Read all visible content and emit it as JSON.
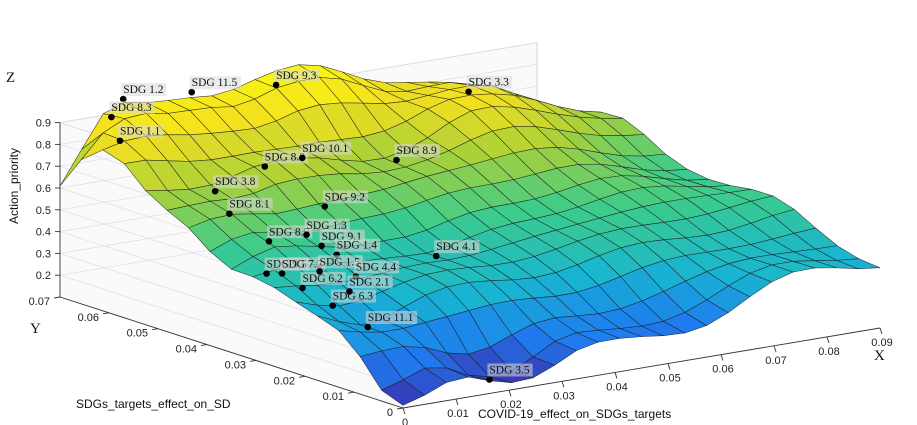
{
  "chart_data": {
    "type": "surface",
    "x_axis": {
      "letter": "X",
      "label": "COVID-19_effect_on_SDGs_targets",
      "ticks": [
        "0",
        "0.01",
        "0.02",
        "0.03",
        "0.04",
        "0.05",
        "0.06",
        "0.07",
        "0.08",
        "0.09"
      ],
      "range": [
        0,
        0.09
      ]
    },
    "y_axis": {
      "letter": "Y",
      "label": "SDGs_targets_effect_on_SD",
      "ticks": [
        "0",
        "0.01",
        "0.02",
        "0.03",
        "0.04",
        "0.05",
        "0.06",
        "0.07"
      ],
      "range": [
        0,
        0.07
      ]
    },
    "z_axis": {
      "letter": "Z",
      "label": "Action_priority",
      "ticks": [
        "0.2",
        "0.3",
        "0.4",
        "0.5",
        "0.6",
        "0.7",
        "0.8",
        "0.9"
      ],
      "range": [
        0.1,
        0.9
      ]
    },
    "colormap": [
      "#3e26a8",
      "#1e7df0",
      "#18b6d0",
      "#3dcc8a",
      "#a7d03a",
      "#f4e01f",
      "#f9fb0e"
    ],
    "grid": true,
    "points": [
      {
        "label": "SDG 1.2",
        "x": 0.011,
        "y": 0.069,
        "z": 0.97
      },
      {
        "label": "SDG 8.3",
        "x": 0.006,
        "y": 0.066,
        "z": 0.93
      },
      {
        "label": "SDG 11.5",
        "x": 0.023,
        "y": 0.068,
        "z": 0.96
      },
      {
        "label": "SDG 9.3",
        "x": 0.038,
        "y": 0.067,
        "z": 0.94
      },
      {
        "label": "SDG 3.3",
        "x": 0.066,
        "y": 0.058,
        "z": 0.86
      },
      {
        "label": "SDG 1.1",
        "x": 0.003,
        "y": 0.061,
        "z": 0.87
      },
      {
        "label": "SDG 3.8",
        "x": 0.008,
        "y": 0.047,
        "z": 0.72
      },
      {
        "label": "SDG 8.2",
        "x": 0.022,
        "y": 0.052,
        "z": 0.74
      },
      {
        "label": "SDG 10.1",
        "x": 0.03,
        "y": 0.053,
        "z": 0.74
      },
      {
        "label": "SDG 8.9",
        "x": 0.045,
        "y": 0.05,
        "z": 0.69
      },
      {
        "label": "SDG 8.1",
        "x": 0.007,
        "y": 0.043,
        "z": 0.65
      },
      {
        "label": "SDG 9.2",
        "x": 0.025,
        "y": 0.043,
        "z": 0.61
      },
      {
        "label": "SDG 9.5",
        "x": 0.002,
        "y": 0.03,
        "z": 0.49
      },
      {
        "label": "SDG 7.2",
        "x": 0.004,
        "y": 0.029,
        "z": 0.49
      },
      {
        "label": "SDG 8.5",
        "x": 0.008,
        "y": 0.036,
        "z": 0.57
      },
      {
        "label": "SDG 1.3",
        "x": 0.016,
        "y": 0.037,
        "z": 0.56
      },
      {
        "label": "SDG 9.1",
        "x": 0.017,
        "y": 0.035,
        "z": 0.52
      },
      {
        "label": "SDG 1.4",
        "x": 0.018,
        "y": 0.033,
        "z": 0.49
      },
      {
        "label": "SDG 6.2",
        "x": 0.006,
        "y": 0.027,
        "z": 0.43
      },
      {
        "label": "SDG 1.5",
        "x": 0.012,
        "y": 0.03,
        "z": 0.46
      },
      {
        "label": "SDG 4.4",
        "x": 0.017,
        "y": 0.028,
        "z": 0.43
      },
      {
        "label": "SDG 6.3",
        "x": 0.008,
        "y": 0.023,
        "z": 0.37
      },
      {
        "label": "SDG 2.1",
        "x": 0.013,
        "y": 0.025,
        "z": 0.4
      },
      {
        "label": "SDG 11.1",
        "x": 0.01,
        "y": 0.018,
        "z": 0.3
      },
      {
        "label": "SDG 4.1",
        "x": 0.034,
        "y": 0.03,
        "z": 0.44
      },
      {
        "label": "SDG 3.5",
        "x": 0.02,
        "y": 0.004,
        "z": 0.12
      }
    ]
  }
}
